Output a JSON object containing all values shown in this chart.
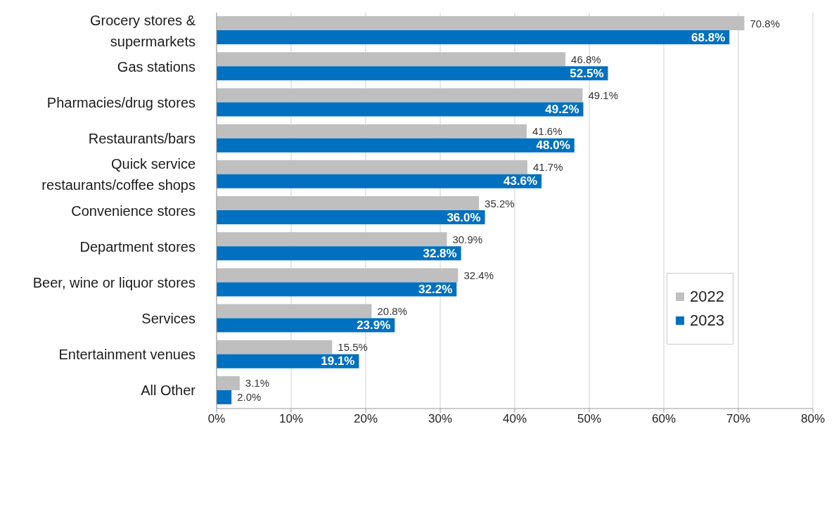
{
  "chart_data": {
    "type": "bar",
    "orientation": "horizontal",
    "categories": [
      "Grocery stores & supermarkets",
      "Gas stations",
      "Pharmacies/drug stores",
      "Restaurants/bars",
      "Quick service restaurants/coffee shops",
      "Convenience stores",
      "Department stores",
      "Beer, wine or liquor stores",
      "Services",
      "Entertainment venues",
      "All Other"
    ],
    "series": [
      {
        "name": "2022",
        "color": "#bfbfbf",
        "values": [
          70.8,
          46.8,
          49.1,
          41.6,
          41.7,
          35.2,
          30.9,
          32.4,
          20.8,
          15.5,
          3.1
        ],
        "value_labels": [
          "70.8%",
          "46.8%",
          "49.1%",
          "41.6%",
          "41.7%",
          "35.2%",
          "30.9%",
          "32.4%",
          "20.8%",
          "15.5%",
          "3.1%"
        ]
      },
      {
        "name": "2023",
        "color": "#0070c0",
        "values": [
          68.8,
          52.5,
          49.2,
          48.0,
          43.6,
          36.0,
          32.8,
          32.2,
          23.9,
          19.1,
          2.0
        ],
        "value_labels": [
          "68.8%",
          "52.5%",
          "49.2%",
          "48.0%",
          "43.6%",
          "36.0%",
          "32.8%",
          "32.2%",
          "23.9%",
          "19.1%",
          "2.0%"
        ]
      }
    ],
    "xlim": [
      0,
      80
    ],
    "xticks": [
      {
        "value": 0,
        "label": "0%"
      },
      {
        "value": 10,
        "label": "10%"
      },
      {
        "value": 20,
        "label": "20%"
      },
      {
        "value": 30,
        "label": "30%"
      },
      {
        "value": 40,
        "label": "40%"
      },
      {
        "value": 50,
        "label": "50%"
      },
      {
        "value": 60,
        "label": "60%"
      },
      {
        "value": 70,
        "label": "70%"
      },
      {
        "value": 80,
        "label": "80%"
      }
    ],
    "grid": "x",
    "legend": "right"
  }
}
